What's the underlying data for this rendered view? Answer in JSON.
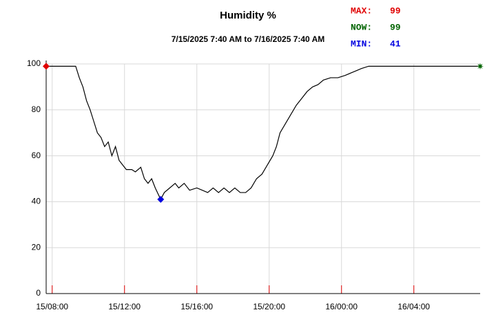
{
  "chart_data": {
    "type": "line",
    "title": "Humidity %",
    "subtitle": "7/15/2025 7:40 AM to 7/16/2025 7:40 AM",
    "x": [
      7.667,
      9.3,
      9.5,
      9.7,
      9.9,
      10.1,
      10.3,
      10.5,
      10.7,
      10.9,
      11.1,
      11.3,
      11.5,
      11.7,
      11.9,
      12.1,
      12.4,
      12.6,
      12.9,
      13.1,
      13.3,
      13.5,
      13.7,
      14.0,
      14.2,
      14.5,
      14.8,
      15.0,
      15.3,
      15.6,
      16.0,
      16.3,
      16.6,
      16.9,
      17.2,
      17.5,
      17.8,
      18.1,
      18.4,
      18.7,
      19.0,
      19.3,
      19.6,
      19.9,
      20.2,
      20.4,
      20.6,
      20.9,
      21.2,
      21.5,
      21.8,
      22.1,
      22.4,
      22.7,
      23.0,
      23.4,
      23.8,
      24.2,
      24.5,
      24.8,
      25.1,
      25.5,
      31.667
    ],
    "series": [
      {
        "name": "Humidity",
        "color": "#000000",
        "values": [
          99,
          99,
          94,
          90,
          84,
          80,
          75,
          70,
          68,
          64,
          66,
          60,
          64,
          58,
          56,
          54,
          54,
          53,
          55,
          50,
          48,
          50,
          46,
          41,
          44,
          46,
          48,
          46,
          48,
          45,
          46,
          45,
          44,
          46,
          44,
          46,
          44,
          46,
          44,
          44,
          46,
          50,
          52,
          56,
          60,
          64,
          70,
          74,
          78,
          82,
          85,
          88,
          90,
          91,
          93,
          94,
          94,
          95,
          96,
          97,
          98,
          99,
          99
        ]
      }
    ],
    "xlim": [
      7.667,
      31.667
    ],
    "xticks": [
      {
        "value": 8,
        "label": "15/08:00"
      },
      {
        "value": 12,
        "label": "15/12:00"
      },
      {
        "value": 16,
        "label": "15/16:00"
      },
      {
        "value": 20,
        "label": "15/20:00"
      },
      {
        "value": 24,
        "label": "16/00:00"
      },
      {
        "value": 28,
        "label": "16/04:00"
      }
    ],
    "ylim": [
      0,
      100
    ],
    "yticks": [
      0,
      20,
      40,
      60,
      80,
      100
    ],
    "grid": true,
    "stats": {
      "max": {
        "label": "MAX:",
        "value": 99,
        "color": "#e00000"
      },
      "now": {
        "label": "NOW:",
        "value": 99,
        "color": "#006400"
      },
      "min": {
        "label": "MIN:",
        "value": 41,
        "color": "#0000e0"
      }
    }
  }
}
